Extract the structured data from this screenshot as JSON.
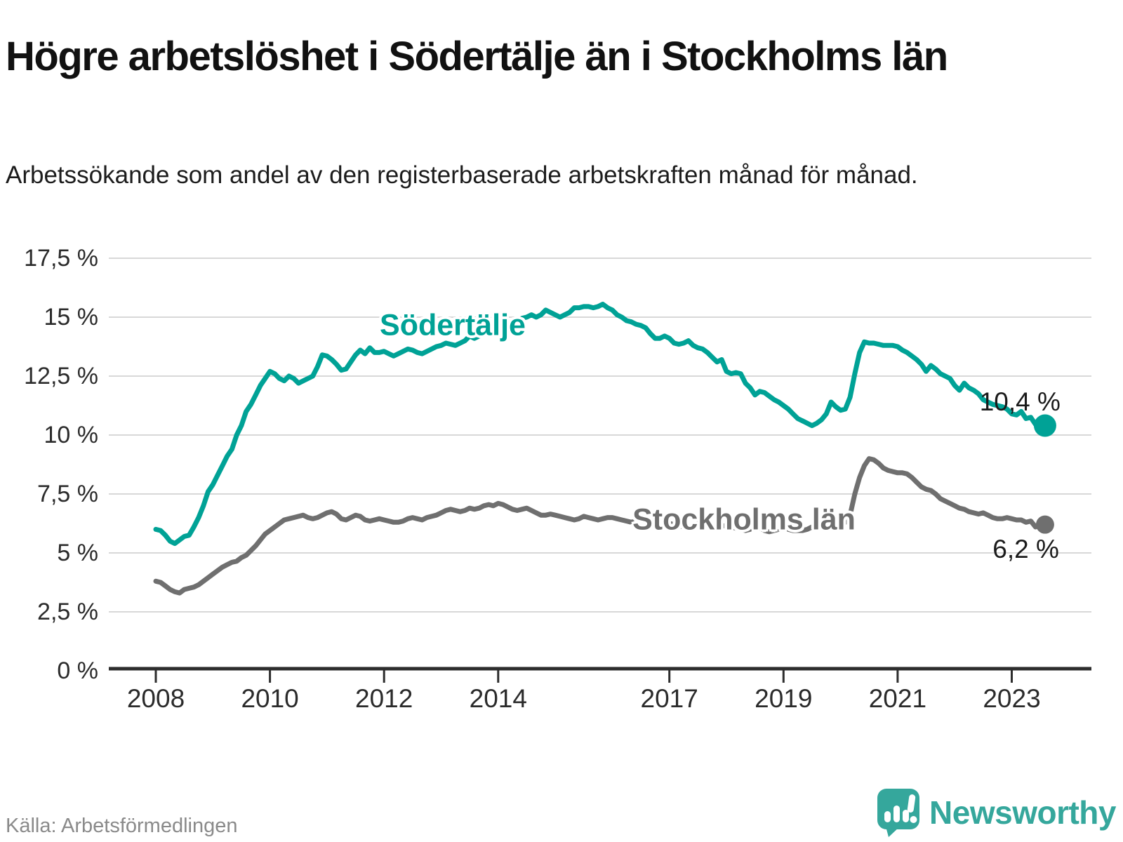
{
  "header": {
    "title": "Högre arbetslöshet i Södertälje än i Stockholms län",
    "subtitle": "Arbetssökande som andel av den registerbaserade arbetskraften månad för månad."
  },
  "footer": {
    "source": "Källa: Arbetsförmedlingen",
    "brand": "Newsworthy"
  },
  "colors": {
    "sodertalje": "#00a296",
    "stockholm": "#6f6f6f",
    "grid": "#d8d8d8",
    "axis": "#2d2d2d",
    "annotation": "#1a1a1a"
  },
  "chart_data": {
    "type": "line",
    "title": "Högre arbetslöshet i Södertälje än i Stockholms län",
    "xlabel": "",
    "ylabel": "Arbetssökande som andel av den registerbaserade arbetskraften",
    "unit": "%",
    "grid": true,
    "legend_position": "inline",
    "ylim": [
      0,
      17.5
    ],
    "x_start_year": 2008,
    "points_per_year": 12,
    "y_ticks": [
      {
        "value": 17.5,
        "label": "17,5 %"
      },
      {
        "value": 15,
        "label": "15 %"
      },
      {
        "value": 12.5,
        "label": "12,5 %"
      },
      {
        "value": 10,
        "label": "10 %"
      },
      {
        "value": 7.5,
        "label": "7,5 %"
      },
      {
        "value": 5,
        "label": "5 %"
      },
      {
        "value": 2.5,
        "label": "2,5 %"
      },
      {
        "value": 0,
        "label": "0 %"
      }
    ],
    "x_ticks": [
      {
        "value": 2008,
        "label": "2008"
      },
      {
        "value": 2010,
        "label": "2010"
      },
      {
        "value": 2012,
        "label": "2012"
      },
      {
        "value": 2014,
        "label": "2014"
      },
      {
        "value": 2017,
        "label": "2017"
      },
      {
        "value": 2019,
        "label": "2019"
      },
      {
        "value": 2021,
        "label": "2021"
      },
      {
        "value": 2023,
        "label": "2023"
      }
    ],
    "series": [
      {
        "name": "Södertälje",
        "color": "#00a296",
        "end_label": "10,4 %",
        "end_value": 10.4,
        "values": [
          6.0,
          5.95,
          5.75,
          5.5,
          5.4,
          5.55,
          5.7,
          5.75,
          6.1,
          6.5,
          7.0,
          7.6,
          7.9,
          8.3,
          8.7,
          9.1,
          9.4,
          10.0,
          10.4,
          11.0,
          11.3,
          11.7,
          12.1,
          12.4,
          12.7,
          12.6,
          12.4,
          12.3,
          12.5,
          12.4,
          12.2,
          12.3,
          12.4,
          12.5,
          12.9,
          13.4,
          13.35,
          13.2,
          13.0,
          12.75,
          12.8,
          13.1,
          13.4,
          13.6,
          13.45,
          13.7,
          13.5,
          13.5,
          13.55,
          13.45,
          13.35,
          13.45,
          13.55,
          13.65,
          13.6,
          13.5,
          13.45,
          13.55,
          13.65,
          13.75,
          13.8,
          13.9,
          13.85,
          13.8,
          13.9,
          14.0,
          14.2,
          14.1,
          14.2,
          14.3,
          14.45,
          14.5,
          14.6,
          14.7,
          14.6,
          14.7,
          14.8,
          14.95,
          15.0,
          15.1,
          15.0,
          15.1,
          15.3,
          15.2,
          15.1,
          15.0,
          15.1,
          15.2,
          15.4,
          15.4,
          15.45,
          15.45,
          15.4,
          15.45,
          15.55,
          15.4,
          15.3,
          15.1,
          15.0,
          14.85,
          14.8,
          14.7,
          14.65,
          14.55,
          14.3,
          14.1,
          14.1,
          14.2,
          14.1,
          13.9,
          13.85,
          13.9,
          14.0,
          13.8,
          13.7,
          13.65,
          13.5,
          13.3,
          13.1,
          13.2,
          12.7,
          12.6,
          12.65,
          12.6,
          12.2,
          12.0,
          11.7,
          11.85,
          11.8,
          11.65,
          11.5,
          11.4,
          11.25,
          11.1,
          10.9,
          10.7,
          10.6,
          10.5,
          10.4,
          10.5,
          10.65,
          10.9,
          11.4,
          11.2,
          11.05,
          11.1,
          11.6,
          12.6,
          13.5,
          13.95,
          13.9,
          13.9,
          13.85,
          13.8,
          13.8,
          13.8,
          13.75,
          13.6,
          13.5,
          13.35,
          13.2,
          13.0,
          12.7,
          12.95,
          12.8,
          12.6,
          12.5,
          12.4,
          12.1,
          11.9,
          12.2,
          12.0,
          11.9,
          11.75,
          11.5,
          11.4,
          11.3,
          11.25,
          11.2,
          11.1,
          10.9,
          10.85,
          11.0,
          10.7,
          10.75,
          10.45,
          10.25,
          10.4
        ]
      },
      {
        "name": "Stockholms län",
        "color": "#6f6f6f",
        "end_label": "6,2 %",
        "end_value": 6.2,
        "values": [
          3.8,
          3.75,
          3.6,
          3.45,
          3.35,
          3.3,
          3.45,
          3.5,
          3.55,
          3.65,
          3.8,
          3.95,
          4.1,
          4.25,
          4.4,
          4.5,
          4.6,
          4.65,
          4.8,
          4.9,
          5.1,
          5.3,
          5.55,
          5.8,
          5.95,
          6.1,
          6.25,
          6.4,
          6.45,
          6.5,
          6.55,
          6.6,
          6.5,
          6.45,
          6.5,
          6.6,
          6.7,
          6.75,
          6.65,
          6.45,
          6.4,
          6.5,
          6.6,
          6.55,
          6.4,
          6.35,
          6.4,
          6.45,
          6.4,
          6.35,
          6.3,
          6.3,
          6.35,
          6.45,
          6.5,
          6.45,
          6.4,
          6.5,
          6.55,
          6.6,
          6.7,
          6.8,
          6.85,
          6.8,
          6.75,
          6.8,
          6.9,
          6.85,
          6.9,
          7.0,
          7.05,
          7.0,
          7.1,
          7.05,
          6.95,
          6.85,
          6.8,
          6.85,
          6.9,
          6.8,
          6.7,
          6.6,
          6.6,
          6.65,
          6.6,
          6.55,
          6.5,
          6.45,
          6.4,
          6.45,
          6.55,
          6.5,
          6.45,
          6.4,
          6.45,
          6.5,
          6.5,
          6.45,
          6.4,
          6.35,
          6.3,
          6.35,
          6.45,
          6.4,
          6.3,
          6.2,
          6.2,
          6.25,
          6.25,
          6.2,
          6.15,
          6.1,
          6.1,
          6.15,
          6.25,
          6.2,
          6.15,
          6.1,
          6.1,
          6.15,
          6.15,
          6.1,
          6.05,
          6.0,
          5.95,
          6.0,
          6.1,
          6.05,
          5.95,
          5.9,
          5.95,
          6.0,
          6.05,
          6.0,
          5.95,
          5.95,
          5.95,
          6.0,
          6.1,
          6.1,
          6.1,
          6.15,
          6.2,
          6.25,
          6.3,
          6.3,
          6.6,
          7.5,
          8.2,
          8.7,
          9.0,
          8.95,
          8.8,
          8.6,
          8.5,
          8.45,
          8.4,
          8.4,
          8.35,
          8.2,
          8.0,
          7.8,
          7.7,
          7.65,
          7.5,
          7.3,
          7.2,
          7.1,
          7.0,
          6.9,
          6.85,
          6.75,
          6.7,
          6.65,
          6.7,
          6.6,
          6.5,
          6.45,
          6.45,
          6.5,
          6.45,
          6.4,
          6.4,
          6.3,
          6.35,
          6.1,
          6.15,
          6.2
        ]
      }
    ]
  }
}
